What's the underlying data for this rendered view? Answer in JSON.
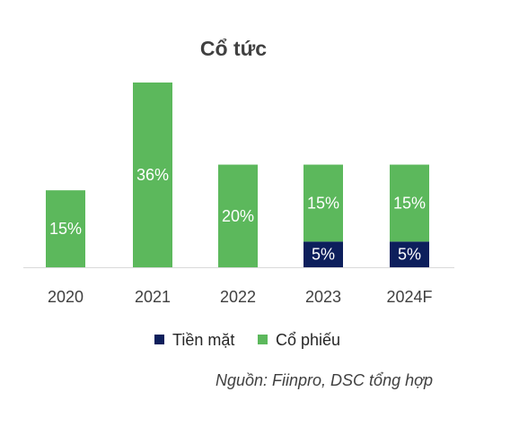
{
  "chart_data": {
    "type": "bar",
    "stacked": true,
    "title": "Cổ tức",
    "categories": [
      "2020",
      "2021",
      "2022",
      "2023",
      "2024F"
    ],
    "series": [
      {
        "name": "Tiền mặt",
        "values": [
          0,
          0,
          0,
          5,
          5
        ],
        "labels": [
          "",
          "",
          "",
          "5%",
          "5%"
        ],
        "color": "#0d1f5c"
      },
      {
        "name": "Cổ phiếu",
        "values": [
          15,
          36,
          20,
          15,
          15
        ],
        "labels": [
          "15%",
          "36%",
          "20%",
          "15%",
          "15%"
        ],
        "color": "#5cb85c"
      }
    ],
    "xlabel": "",
    "ylabel": "",
    "ylim": [
      0,
      36
    ],
    "grid": false,
    "legend": "bottom"
  },
  "source": "Nguồn: Fiinpro, DSC tổng hợp"
}
